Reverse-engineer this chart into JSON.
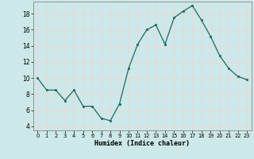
{
  "x": [
    0,
    1,
    2,
    3,
    4,
    5,
    6,
    7,
    8,
    9,
    10,
    11,
    12,
    13,
    14,
    15,
    16,
    17,
    18,
    19,
    20,
    21,
    22,
    23
  ],
  "y": [
    10.0,
    8.5,
    8.5,
    7.2,
    8.5,
    6.5,
    6.5,
    5.0,
    4.7,
    6.8,
    11.2,
    14.2,
    16.0,
    16.6,
    14.2,
    17.5,
    18.3,
    19.0,
    17.2,
    15.2,
    12.8,
    11.2,
    10.2,
    9.8
  ],
  "xlabel": "Humidex (Indice chaleur)",
  "xlim": [
    -0.5,
    23.5
  ],
  "ylim": [
    3.5,
    19.5
  ],
  "yticks": [
    4,
    6,
    8,
    10,
    12,
    14,
    16,
    18
  ],
  "xticks": [
    0,
    1,
    2,
    3,
    4,
    5,
    6,
    7,
    8,
    9,
    10,
    11,
    12,
    13,
    14,
    15,
    16,
    17,
    18,
    19,
    20,
    21,
    22,
    23
  ],
  "line_color": "#1a6b5a",
  "marker": "s",
  "marker_size": 2.0,
  "bg_color": "#cce8e8",
  "grid_color": "#e8d8d8",
  "spine_color": "#888888"
}
